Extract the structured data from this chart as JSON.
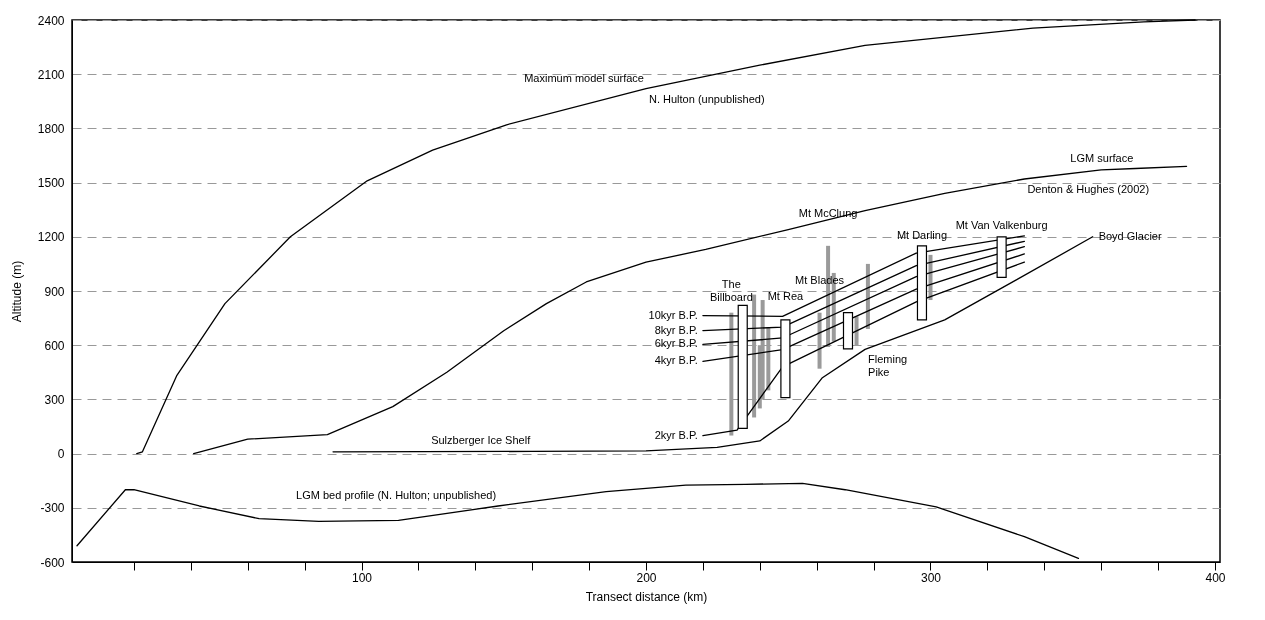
{
  "chart_data": {
    "type": "line",
    "xlabel": "Transect distance (km)",
    "ylabel": "Altitude (m)",
    "xlim": [
      0,
      400
    ],
    "ylim": [
      -600,
      2400
    ],
    "xticks": [
      {
        "value": 20,
        "label": null
      },
      {
        "value": 40,
        "label": null
      },
      {
        "value": 60,
        "label": null
      },
      {
        "value": 80,
        "label": null
      },
      100,
      {
        "value": 120,
        "label": null
      },
      {
        "value": 140,
        "label": null
      },
      {
        "value": 160,
        "label": null
      },
      {
        "value": 180,
        "label": null
      },
      200,
      {
        "value": 220,
        "label": null
      },
      {
        "value": 240,
        "label": null
      },
      {
        "value": 260,
        "label": null
      },
      {
        "value": 280,
        "label": null
      },
      300,
      {
        "value": 320,
        "label": null
      },
      {
        "value": 340,
        "label": null
      },
      {
        "value": 360,
        "label": null
      },
      {
        "value": 380,
        "label": null
      },
      400
    ],
    "yticks": [
      -600,
      -300,
      0,
      300,
      600,
      900,
      1200,
      1500,
      1800,
      2100,
      2400
    ],
    "grid": "y",
    "marker": "none",
    "series": [
      {
        "type": "bar",
        "color": "#9a9a9a",
        "x": [
          230,
          238,
          240,
          241,
          243,
          261,
          264,
          266,
          274,
          278,
          300
        ],
        "base": [
          100,
          200,
          250,
          300,
          350,
          470,
          590,
          620,
          600,
          690,
          850
        ],
        "values": [
          680,
          680,
          350,
          550,
          350,
          310,
          560,
          380,
          160,
          360,
          250
        ]
      },
      {
        "color": "#000000",
        "x": [
          21,
          23,
          35,
          52,
          75,
          102,
          125,
          151,
          200,
          240,
          277,
          336,
          375,
          393
        ],
        "values": [
          0,
          10,
          430,
          830,
          1200,
          1510,
          1680,
          1820,
          2020,
          2150,
          2260,
          2355,
          2390,
          2400
        ]
      },
      {
        "color": "#000000",
        "x": [
          41,
          60,
          88,
          111,
          130,
          150,
          165,
          179,
          200,
          221,
          250,
          277,
          305,
          333,
          360,
          372,
          390
        ],
        "values": [
          0,
          80,
          105,
          260,
          450,
          680,
          830,
          950,
          1060,
          1130,
          1240,
          1345,
          1440,
          1520,
          1570,
          1578,
          1590
        ]
      },
      {
        "color": "#000000",
        "x": [
          90,
          160,
          200,
          225,
          240,
          250,
          256,
          262,
          277,
          305,
          330,
          357
        ],
        "values": [
          10,
          12,
          15,
          35,
          70,
          180,
          300,
          420,
          577,
          740,
          960,
          1200
        ]
      },
      {
        "color": "#000000",
        "x": [
          0,
          17,
          20,
          43,
          64,
          85,
          113,
          148,
          186,
          214,
          235,
          255,
          270,
          302,
          333,
          352
        ],
        "values": [
          -510,
          -200,
          -200,
          -290,
          -360,
          -375,
          -370,
          -290,
          -210,
          -175,
          -170,
          -165,
          -200,
          -295,
          -460,
          -580
        ]
      },
      {
        "color": "#000000",
        "x": [
          220,
          248,
          295,
          333
        ],
        "values": [
          764,
          760,
          1110,
          1205
        ]
      },
      {
        "color": "#000000",
        "x": [
          220,
          248,
          295,
          333
        ],
        "values": [
          681,
          700,
          1040,
          1175
        ]
      },
      {
        "color": "#000000",
        "x": [
          220,
          248,
          295,
          333
        ],
        "values": [
          604,
          640,
          980,
          1145
        ]
      },
      {
        "color": "#000000",
        "x": [
          220,
          248,
          295,
          333
        ],
        "values": [
          511,
          575,
          910,
          1105
        ]
      },
      {
        "color": "#000000",
        "x": [
          220,
          232,
          248,
          295,
          333
        ],
        "values": [
          100,
          130,
          480,
          840,
          1060
        ]
      },
      {
        "type": "bar",
        "color": "#ffffff",
        "x": [
          234,
          249,
          271,
          297,
          325
        ],
        "base": [
          140,
          310,
          580,
          740,
          975
        ],
        "values": [
          680,
          430,
          200,
          410,
          225
        ]
      }
    ],
    "annotations": [
      {
        "text": "Maximum model surface",
        "x": 200,
        "y": 2020
      },
      {
        "text": "N. Hulton (unpublished)",
        "x": 200,
        "y": 2020
      },
      {
        "text": "LGM surface",
        "x": 372,
        "y": 1578
      },
      {
        "text": "Denton & Hughes (2002)",
        "x": 333,
        "y": 1520
      },
      {
        "text": "Mt Van Valkenburg",
        "x": 325,
        "y": 1200
      },
      {
        "text": "Mt Darling",
        "x": 297,
        "y": 1150
      },
      {
        "text": "Mt McClung",
        "x": 264,
        "y": 1150
      },
      {
        "text": "Mt Blades",
        "x": 261,
        "y": 780
      },
      {
        "text": "Mt Rea",
        "x": 249,
        "y": 740
      },
      {
        "text": "The\nBillboard",
        "x": 230,
        "y": 780
      },
      {
        "text": "Sulzberger Ice Shelf",
        "x": 160,
        "y": 12
      },
      {
        "text": "Boyd Glacier",
        "x": 357,
        "y": 1200
      },
      {
        "text": "Fleming\nPike",
        "x": 277,
        "y": 577
      },
      {
        "text": "10kyr B.P.",
        "x": 220,
        "y": 764
      },
      {
        "text": "8kyr B.P.",
        "x": 220,
        "y": 681
      },
      {
        "text": "6kyr B.P.",
        "x": 220,
        "y": 604
      },
      {
        "text": "4kyr B.P.",
        "x": 220,
        "y": 511
      },
      {
        "text": "2kyr B.P.",
        "x": 220,
        "y": 100
      },
      {
        "text": "LGM bed profile (N. Hulton; unpublished)",
        "x": 148,
        "y": -290
      }
    ]
  }
}
